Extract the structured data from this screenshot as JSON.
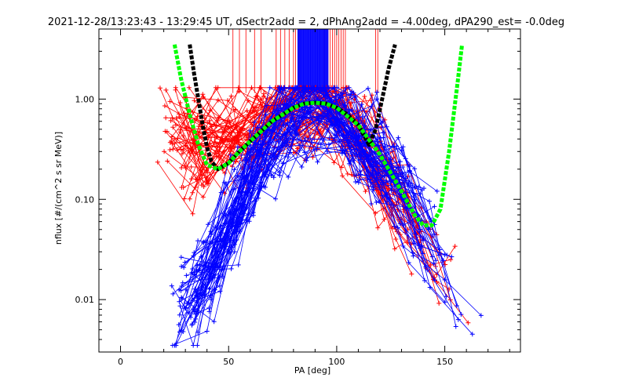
{
  "chart_data": {
    "type": "line",
    "title": "2021-12-28/13:23:43 - 13:29:45 UT, dSectr2add = 2, dPhAng2add = -4.00deg, dPA290_est=  -0.0deg",
    "xlabel": "PA [deg]",
    "ylabel": "nflux [#/(cm^2 s sr MeV)]",
    "xlim": [
      -10,
      185
    ],
    "ylim": [
      0.003,
      5.0
    ],
    "yscale": "log",
    "grid": false,
    "x_ticks": [
      0,
      50,
      100,
      150
    ],
    "x_tick_labels": [
      "0",
      "50",
      "100",
      "150"
    ],
    "y_ticks": [
      0.01,
      0.1,
      1.0
    ],
    "y_tick_labels": [
      "0.01",
      "0.10",
      "1.00"
    ],
    "colors": {
      "series_red": "#ff0000",
      "series_blue": "#0000ff",
      "fit_green": "#00ff00",
      "fit_black": "#000000",
      "axis": "#000000",
      "background": "#ffffff"
    },
    "series": [
      {
        "color": "red",
        "marker": "plus",
        "style": "many-traces",
        "approx_profile": {
          "x": [
            10,
            20,
            30,
            40,
            50,
            60,
            70,
            80,
            90,
            100,
            110,
            120,
            130,
            140,
            150,
            160
          ],
          "y": [
            0.5,
            0.6,
            0.5,
            0.3,
            0.4,
            0.5,
            0.7,
            0.9,
            0.95,
            0.8,
            0.4,
            0.2,
            0.1,
            0.03,
            0.012,
            0.008
          ]
        }
      },
      {
        "color": "blue",
        "marker": "plus",
        "style": "many-traces",
        "approx_profile": {
          "x": [
            15,
            25,
            35,
            45,
            55,
            65,
            75,
            85,
            90,
            95,
            105,
            115,
            125,
            135,
            145,
            155,
            165
          ],
          "y": [
            0.008,
            0.007,
            0.01,
            0.03,
            0.1,
            0.3,
            0.6,
            0.9,
            0.95,
            0.85,
            0.5,
            0.3,
            0.2,
            0.08,
            0.03,
            0.01,
            0.008
          ]
        }
      },
      {
        "color": "green",
        "style": "thick-dashed-fit",
        "x": [
          25,
          28,
          32,
          36,
          40,
          45,
          50,
          55,
          60,
          70,
          80,
          85,
          90,
          95,
          100,
          110,
          120,
          130,
          136,
          140,
          144,
          148,
          152,
          156,
          158
        ],
        "y": [
          3.5,
          1.6,
          0.7,
          0.35,
          0.22,
          0.2,
          0.23,
          0.3,
          0.38,
          0.6,
          0.82,
          0.9,
          0.92,
          0.9,
          0.82,
          0.55,
          0.28,
          0.12,
          0.07,
          0.055,
          0.055,
          0.08,
          0.3,
          1.5,
          3.5
        ]
      },
      {
        "color": "black",
        "style": "thick-dashed-fit",
        "x": [
          32,
          34,
          36,
          38,
          40,
          42,
          45,
          50,
          55,
          60,
          70,
          80,
          85,
          90,
          95,
          100,
          105,
          110,
          115,
          118,
          121,
          124,
          127
        ],
        "y": [
          3.5,
          1.8,
          1.0,
          0.55,
          0.33,
          0.24,
          0.2,
          0.23,
          0.3,
          0.38,
          0.6,
          0.82,
          0.9,
          0.92,
          0.9,
          0.82,
          0.7,
          0.55,
          0.35,
          0.5,
          1.0,
          2.0,
          3.5
        ]
      }
    ],
    "vertical_markers": {
      "red_x": [
        52,
        55,
        58,
        62,
        65,
        72,
        74,
        76,
        78,
        80,
        81,
        82,
        83,
        94,
        95,
        96,
        97,
        98,
        99,
        100,
        101,
        102,
        103,
        104,
        118,
        119
      ],
      "blue_x_range": [
        82,
        96
      ],
      "y_from": 1.15,
      "y_to": 5.0
    }
  }
}
